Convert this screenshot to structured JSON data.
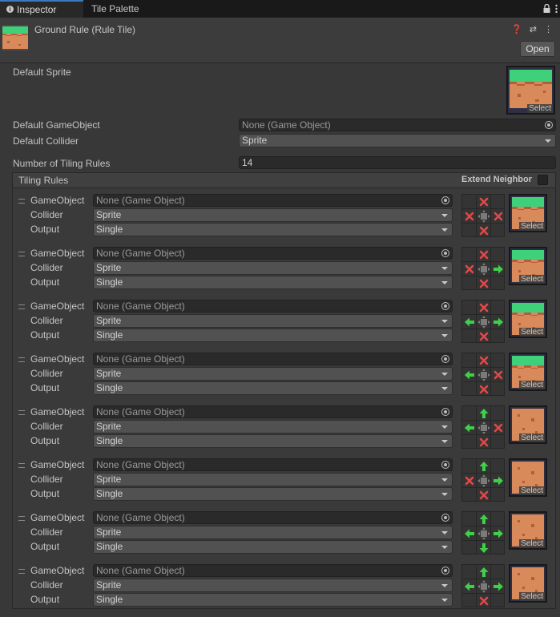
{
  "tabs": [
    {
      "label": "Inspector",
      "active": true
    },
    {
      "label": "Tile Palette",
      "active": false
    }
  ],
  "header": {
    "title": "Ground Rule (Rule Tile)",
    "open_label": "Open",
    "icons": "❓ ⇄ ⋮"
  },
  "fields": {
    "default_sprite_label": "Default Sprite",
    "select_label": "Select",
    "default_gameobject_label": "Default GameObject",
    "default_gameobject_value": "None (Game Object)",
    "default_collider_label": "Default Collider",
    "default_collider_value": "Sprite",
    "num_rules_label": "Number of Tiling Rules",
    "num_rules_value": "14"
  },
  "tiling": {
    "title": "Tiling Rules",
    "extend_label": "Extend Neighbor"
  },
  "rule_labels": {
    "gameobject": "GameObject",
    "collider": "Collider",
    "output": "Output"
  },
  "rules": [
    {
      "gameobject": "None (Game Object)",
      "collider": "Sprite",
      "output": "Single",
      "sprite": "grass",
      "neighbors": {
        "n": "x",
        "w": "x",
        "e": "x",
        "s": "x"
      }
    },
    {
      "gameobject": "None (Game Object)",
      "collider": "Sprite",
      "output": "Single",
      "sprite": "grass",
      "neighbors": {
        "n": "x",
        "w": "x",
        "e": "right",
        "s": "x"
      }
    },
    {
      "gameobject": "None (Game Object)",
      "collider": "Sprite",
      "output": "Single",
      "sprite": "grass",
      "neighbors": {
        "n": "x",
        "w": "left",
        "e": "right",
        "s": "x"
      }
    },
    {
      "gameobject": "None (Game Object)",
      "collider": "Sprite",
      "output": "Single",
      "sprite": "grass",
      "neighbors": {
        "n": "x",
        "w": "left",
        "e": "x",
        "s": "x"
      }
    },
    {
      "gameobject": "None (Game Object)",
      "collider": "Sprite",
      "output": "Single",
      "sprite": "dirt",
      "neighbors": {
        "n": "up",
        "w": "left",
        "e": "x",
        "s": "x"
      }
    },
    {
      "gameobject": "None (Game Object)",
      "collider": "Sprite",
      "output": "Single",
      "sprite": "dirt",
      "neighbors": {
        "n": "up",
        "w": "x",
        "e": "right",
        "s": "x"
      }
    },
    {
      "gameobject": "None (Game Object)",
      "collider": "Sprite",
      "output": "Single",
      "sprite": "dirt",
      "neighbors": {
        "n": "up",
        "w": "left",
        "e": "right",
        "s": "down"
      }
    },
    {
      "gameobject": "None (Game Object)",
      "collider": "Sprite",
      "output": "Single",
      "sprite": "dirt",
      "neighbors": {
        "n": "up",
        "w": "left",
        "e": "right",
        "s": "x"
      }
    }
  ],
  "colors": {
    "accent": "#3a79bb",
    "grass": "#3fd07a",
    "dirt": "#d98a5a",
    "dirt_dark": "#b65b3c",
    "arrow": "#3fd04a",
    "cross": "#e04848"
  }
}
